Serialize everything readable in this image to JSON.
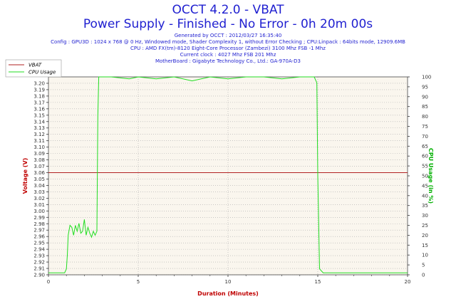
{
  "header": {
    "title": "OCCT 4.2.0 - VBAT",
    "subtitle": "Power Supply - Finished - No Error - 0h 20m 00s",
    "info_lines": [
      "Generated by OCCT : 2012/03/27 16:35:40",
      "Config : GPU3D : 1024 x 768 @ 0 Hz, Windowed mode, Shader Complexity 1, without Error Checking ; CPU:Linpack : 64bits mode, 12909.6MB",
      "CPU : AMD FX(tm)-8120 Eight-Core Processor (Zambezi) 3100 Mhz FSB -1 Mhz",
      "Current clock : 4027 Mhz FSB 201 Mhz",
      "MotherBoard : Gigabyte Technology Co., Ltd.: GA-970A-D3"
    ]
  },
  "chart_data": {
    "type": "line",
    "title": "OCCT 4.2.0 - VBAT",
    "xlabel": "Duration (Minutes)",
    "ylabel": "Voltage (V)",
    "y2label": "CPU Usage (in %)",
    "xlim": [
      0,
      20
    ],
    "ylim": [
      2.9,
      3.21
    ],
    "y2lim": [
      0,
      100
    ],
    "x_ticks": [
      0,
      5,
      10,
      15,
      20
    ],
    "y_ticks": [
      "2.90",
      "2.91",
      "2.92",
      "2.93",
      "2.94",
      "2.95",
      "2.96",
      "2.97",
      "2.98",
      "2.99",
      "3.00",
      "3.01",
      "3.02",
      "3.03",
      "3.04",
      "3.05",
      "3.06",
      "3.07",
      "3.08",
      "3.09",
      "3.10",
      "3.11",
      "3.12",
      "3.13",
      "3.14",
      "3.15",
      "3.16",
      "3.17",
      "3.18",
      "3.19",
      "3.20"
    ],
    "y2_ticks": [
      0,
      5,
      10,
      15,
      20,
      25,
      30,
      35,
      40,
      45,
      50,
      55,
      60,
      65,
      70,
      75,
      80,
      85,
      90,
      95,
      100
    ],
    "grid": true,
    "legend_position": "top-left",
    "colors": {
      "vbat": "#b22222",
      "cpu": "#22dd22",
      "plot_bg": "#faf6ee",
      "grid": "#aaaaaa",
      "ylabel": "#c00000",
      "y2label": "#00b000",
      "xlabel": "#c00000"
    },
    "series": [
      {
        "name": "VBAT",
        "axis": "left",
        "x": [
          0,
          20
        ],
        "y": [
          3.06,
          3.06
        ]
      },
      {
        "name": "CPU Usage",
        "axis": "right",
        "x": [
          0,
          0.5,
          0.9,
          1.0,
          1.05,
          1.1,
          1.2,
          1.3,
          1.4,
          1.5,
          1.6,
          1.7,
          1.8,
          1.9,
          2.0,
          2.1,
          2.2,
          2.3,
          2.4,
          2.5,
          2.6,
          2.7,
          2.75,
          2.8,
          3.5,
          4.5,
          5.0,
          6.0,
          7.0,
          8.0,
          9.0,
          10.0,
          11.0,
          12.0,
          13.0,
          14.0,
          14.8,
          14.95,
          15.0,
          15.1,
          15.3,
          16,
          17,
          18,
          19,
          20
        ],
        "y": [
          1,
          1,
          1,
          3,
          10,
          20,
          25,
          24,
          20,
          25,
          22,
          26,
          21,
          22,
          28,
          20,
          24,
          21,
          19,
          22,
          20,
          22,
          80,
          100,
          100,
          99,
          100,
          99,
          100,
          98,
          100,
          99,
          100,
          100,
          99,
          100,
          100,
          97,
          50,
          3,
          1,
          1,
          1,
          1,
          1,
          1
        ]
      }
    ]
  }
}
